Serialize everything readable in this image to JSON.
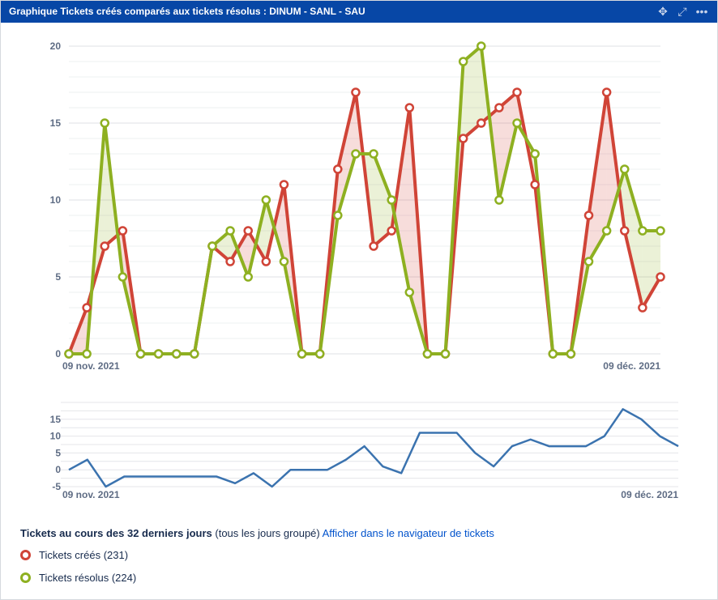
{
  "header": {
    "title": "Graphique Tickets créés comparés aux tickets résolus : DINUM - SANL - SAU",
    "icons": [
      "move-icon",
      "expand-icon",
      "more-icon"
    ]
  },
  "chart_data": [
    {
      "type": "line",
      "x_start_label": "09 nov. 2021",
      "x_end_label": "09 déc. 2021",
      "ylim": [
        0,
        20
      ],
      "yticks": [
        0,
        5,
        10,
        15,
        20
      ],
      "grid": true,
      "series": [
        {
          "name": "Tickets créés",
          "color": "#d04437",
          "values": [
            0,
            3,
            7,
            8,
            0,
            0,
            0,
            0,
            7,
            6,
            8,
            6,
            11,
            0,
            0,
            12,
            17,
            7,
            8,
            16,
            0,
            0,
            14,
            15,
            16,
            17,
            11,
            0,
            0,
            9,
            17,
            8,
            3,
            5
          ]
        },
        {
          "name": "Tickets résolus",
          "color": "#8eb021",
          "values": [
            0,
            0,
            15,
            5,
            0,
            0,
            0,
            0,
            7,
            8,
            5,
            10,
            6,
            0,
            0,
            9,
            13,
            13,
            10,
            4,
            0,
            0,
            19,
            20,
            10,
            15,
            13,
            0,
            0,
            6,
            8,
            12,
            8,
            8
          ]
        }
      ]
    },
    {
      "type": "line",
      "x_start_label": "09 nov. 2021",
      "x_end_label": "09 déc. 2021",
      "ylim": [
        -5,
        20
      ],
      "yticks": [
        -5,
        0,
        5,
        10,
        15
      ],
      "grid": true,
      "series": [
        {
          "color": "#3b73af",
          "values": [
            0,
            3,
            -5,
            -2,
            -2,
            -2,
            -2,
            -2,
            -2,
            -4,
            -1,
            -5,
            0,
            0,
            0,
            3,
            7,
            1,
            -1,
            11,
            11,
            11,
            5,
            1,
            7,
            9,
            7,
            7,
            7,
            10,
            18,
            15,
            10,
            7
          ]
        }
      ]
    }
  ],
  "legend": {
    "title": "Tickets au cours des 32 derniers jours",
    "grouping": "(tous les jours groupé)",
    "link": "Afficher dans le navigateur de tickets",
    "items": [
      {
        "label": "Tickets créés (231)",
        "color": "#d04437"
      },
      {
        "label": "Tickets résolus (224)",
        "color": "#8eb021"
      }
    ]
  }
}
